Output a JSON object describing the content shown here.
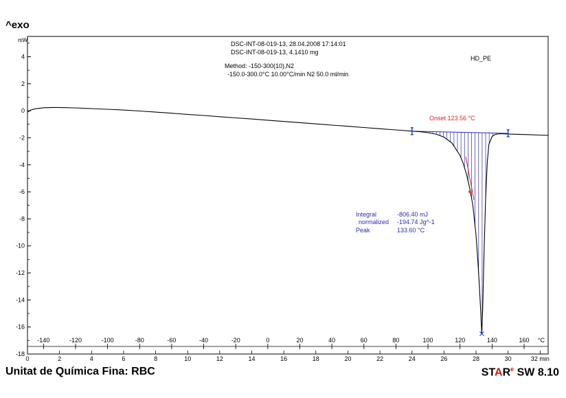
{
  "exo_label": "^exo",
  "header": {
    "line1": "DSC-INT-08-019-13, 28.04.2008 17:14:01",
    "line2": "DSC-INT-08-019-13, 4.1410 mg",
    "method1": "Method: -150-300(10),N2",
    "method2": "-150.0-300.0°C 10.00°C/min     N2 50.0 ml/min",
    "sample": "HD_PE"
  },
  "annotations": {
    "onset": "Onset   123.56 °C",
    "integral_label": "Integral",
    "integral_value": "-806.40 mJ",
    "normalized_label": "normalized",
    "normalized_value": "-194.74 Jg^-1",
    "peak_label": "Peak",
    "peak_value": "133.60 °C"
  },
  "footer": {
    "left": "Unitat de Química Fina: RBC",
    "right_s": "S",
    "right_t": "T",
    "right_a": "A",
    "right_r": "R",
    "right_sup": "e",
    "right_rest": " SW 8.10"
  },
  "colors": {
    "curve": "#000000",
    "integration_fill": "#2a2ab0",
    "onset_text": "#e02020",
    "info_text": "#2a2ab8",
    "marker": "#1a3cc8"
  },
  "chart_data": {
    "type": "line",
    "ylabel": "mW",
    "ylim": [
      -18,
      5.5
    ],
    "y_ticks": [
      4,
      2,
      0,
      -2,
      -4,
      -6,
      -8,
      -10,
      -12,
      -14,
      -16,
      -18
    ],
    "temp_axis": {
      "unit": "°C",
      "range": [
        -150,
        175
      ],
      "ticks": [
        -140,
        -120,
        -100,
        -80,
        -60,
        -40,
        -20,
        0,
        20,
        40,
        60,
        80,
        100,
        120,
        140,
        160
      ]
    },
    "time_axis": {
      "unit": "min",
      "range": [
        0,
        32.5
      ],
      "ticks": [
        0,
        2,
        4,
        6,
        8,
        10,
        12,
        14,
        16,
        18,
        20,
        22,
        24,
        26,
        28,
        30,
        32
      ]
    },
    "series": [
      {
        "x_temp": [
          -150,
          -148,
          -145,
          -140,
          -135,
          -130,
          -120,
          -110,
          -100,
          -90,
          -80,
          -70,
          -60,
          -50,
          -40,
          -30,
          -20,
          -10,
          0,
          10,
          20,
          30,
          40,
          50,
          60,
          70,
          80,
          90,
          95,
          100,
          105,
          110,
          115,
          120,
          122,
          124,
          126,
          128,
          130,
          131,
          132,
          133,
          133.6,
          134.2,
          135,
          136,
          137,
          138,
          140,
          142,
          145,
          150,
          155,
          160,
          165,
          170,
          175
        ],
        "y": [
          -0.1,
          0.05,
          0.15,
          0.22,
          0.24,
          0.24,
          0.21,
          0.16,
          0.11,
          0.05,
          -0.02,
          -0.1,
          -0.18,
          -0.27,
          -0.35,
          -0.44,
          -0.53,
          -0.61,
          -0.7,
          -0.79,
          -0.88,
          -0.97,
          -1.06,
          -1.15,
          -1.24,
          -1.33,
          -1.42,
          -1.51,
          -1.55,
          -1.62,
          -1.73,
          -1.95,
          -2.4,
          -3.3,
          -3.9,
          -4.7,
          -5.7,
          -7.0,
          -9.2,
          -10.9,
          -12.8,
          -15.0,
          -16.5,
          -14.5,
          -10.5,
          -6.5,
          -3.8,
          -2.5,
          -1.9,
          -1.75,
          -1.7,
          -1.72,
          -1.74,
          -1.76,
          -1.78,
          -1.8,
          -1.82
        ]
      }
    ],
    "baseline": {
      "x_temp": [
        90,
        150
      ],
      "y": [
        -1.51,
        -1.67
      ]
    },
    "onset_temp": 123.56,
    "peak_temp": 133.6,
    "peak_value": -16.5
  }
}
